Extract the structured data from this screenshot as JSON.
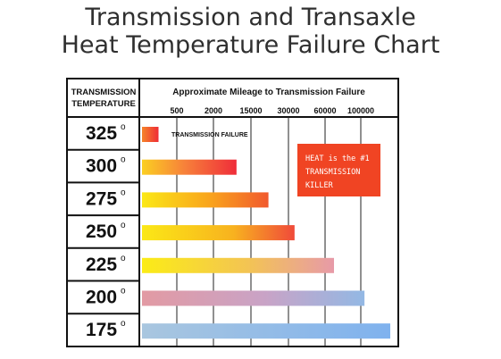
{
  "title": {
    "line1": "Transmission and Transaxle",
    "line2": "Heat Temperature Failure Chart"
  },
  "chart_data": {
    "type": "bar",
    "orientation": "horizontal",
    "row_header": [
      "TRANSMISSION",
      "TEMPERATURE"
    ],
    "column_header": "Approximate Mileage to Transmission Failure",
    "x_tick_labels": [
      "500",
      "2000",
      "15000",
      "30000",
      "60000",
      "100000"
    ],
    "degree_symbol": "o",
    "categories": [
      "325",
      "300",
      "275",
      "250",
      "225",
      "200",
      "175"
    ],
    "values": [
      250,
      10000,
      22000,
      35000,
      70000,
      105000,
      140000
    ],
    "bar_label": "TRANSMISSION FAILURE",
    "annotation": [
      "HEAT is the #1",
      "TRANSMISSION",
      "KILLER"
    ],
    "grid": true,
    "colors": {
      "hot_red": "#ef2d35",
      "orange": "#f79320",
      "yellow": "#fbe816",
      "pink": "#e29aa3",
      "blue": "#93c1ec",
      "note_bg": "#f04423"
    }
  }
}
